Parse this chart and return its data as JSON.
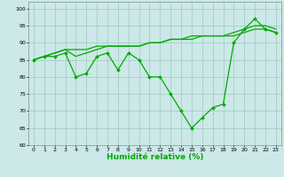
{
  "xlabel": "Humidité relative (%)",
  "xlim": [
    -0.5,
    23.5
  ],
  "ylim": [
    60,
    102
  ],
  "yticks": [
    60,
    65,
    70,
    75,
    80,
    85,
    90,
    95,
    100
  ],
  "xticks": [
    0,
    1,
    2,
    3,
    4,
    5,
    6,
    7,
    8,
    9,
    10,
    11,
    12,
    13,
    14,
    15,
    16,
    17,
    18,
    19,
    20,
    21,
    22,
    23
  ],
  "bg_color": "#cce8e8",
  "grid_color": "#99ccbb",
  "line_color": "#00aa00",
  "line1": [
    85,
    86,
    86,
    87,
    80,
    81,
    86,
    87,
    82,
    87,
    85,
    80,
    80,
    75,
    70,
    65,
    68,
    71,
    72,
    90,
    94,
    97,
    94,
    93
  ],
  "line2": [
    85,
    86,
    87,
    88,
    86,
    87,
    88,
    89,
    89,
    89,
    89,
    90,
    90,
    91,
    91,
    91,
    92,
    92,
    92,
    92,
    93,
    94,
    94,
    93
  ],
  "line3": [
    85,
    86,
    87,
    88,
    88,
    88,
    89,
    89,
    89,
    89,
    89,
    90,
    90,
    91,
    91,
    92,
    92,
    92,
    92,
    93,
    94,
    95,
    95,
    94
  ],
  "marker": "D",
  "markersize": 2.0,
  "linewidth": 0.9,
  "tick_labelsize": 4.5,
  "xlabel_fontsize": 6.5
}
